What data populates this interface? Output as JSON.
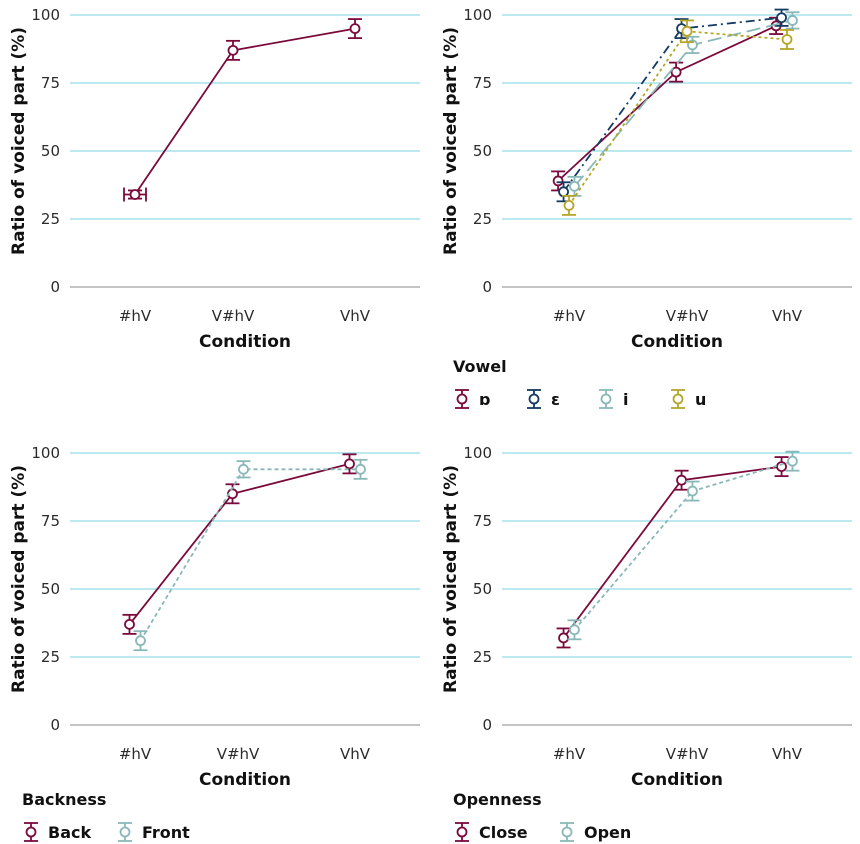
{
  "colors": {
    "grid": "#7ad3e0",
    "axis": "#888888",
    "maroon": "#7b0a3c",
    "navy": "#123a63",
    "lightblue": "#8ab8b8",
    "olive": "#b5a628"
  },
  "chart_data": [
    {
      "type": "line",
      "panel": "top-left",
      "xlabel": "Condition",
      "ylabel": "Ratio of voiced part (%)",
      "ylim": [
        0,
        100
      ],
      "yticks": [
        0,
        25,
        50,
        75,
        100
      ],
      "categories": [
        "#hV",
        "V#hV",
        "VhV"
      ],
      "grid": true,
      "legend": null,
      "series": [
        {
          "name": "",
          "color": "#7b0a3c",
          "dash": "solid",
          "values": [
            34,
            87,
            95
          ],
          "err": [
            1.5,
            3.5,
            3.5
          ],
          "xerr": [
            0.1,
            0,
            0
          ]
        }
      ]
    },
    {
      "type": "line",
      "panel": "top-right",
      "xlabel": "Condition",
      "ylabel": "Ratio of voiced part (%)",
      "ylim": [
        0,
        100
      ],
      "yticks": [
        0,
        25,
        50,
        75,
        100
      ],
      "categories": [
        "#hV",
        "V#hV",
        "VhV"
      ],
      "grid": true,
      "legend": {
        "title": "Vowel",
        "position": "bottom-left"
      },
      "series": [
        {
          "name": "ɒ",
          "color": "#7b0a3c",
          "dash": "solid",
          "values": [
            39,
            79,
            96
          ],
          "err": [
            3.5,
            3.5,
            3
          ],
          "offset": -0.1
        },
        {
          "name": "ɛ",
          "color": "#123a63",
          "dash": "dashdot",
          "values": [
            35,
            95,
            99
          ],
          "err": [
            3.5,
            3.5,
            3
          ],
          "offset": -0.05
        },
        {
          "name": "i",
          "color": "#8ab8b8",
          "dash": "longdash",
          "values": [
            37,
            89,
            98
          ],
          "err": [
            3.5,
            3,
            3
          ],
          "offset": 0.05
        },
        {
          "name": "u",
          "color": "#b5a628",
          "dash": "dotted",
          "values": [
            30,
            94,
            91
          ],
          "err": [
            3.5,
            4,
            3.5
          ],
          "offset": 0
        }
      ]
    },
    {
      "type": "line",
      "panel": "bottom-left",
      "xlabel": "Condition",
      "ylabel": "Ratio of voiced part (%)",
      "ylim": [
        0,
        100
      ],
      "yticks": [
        0,
        25,
        50,
        75,
        100
      ],
      "categories": [
        "#hV",
        "V#hV",
        "VhV"
      ],
      "grid": true,
      "legend": {
        "title": "Backness",
        "position": "bottom-left"
      },
      "series": [
        {
          "name": "Back",
          "color": "#7b0a3c",
          "dash": "solid",
          "values": [
            37,
            85,
            96
          ],
          "err": [
            3.5,
            3.5,
            3.5
          ],
          "offset": -0.05
        },
        {
          "name": "Front",
          "color": "#8ab8b8",
          "dash": "dashed",
          "values": [
            31,
            94,
            94
          ],
          "err": [
            3.5,
            3,
            3.5
          ],
          "offset": 0.05
        }
      ]
    },
    {
      "type": "line",
      "panel": "bottom-right",
      "xlabel": "Condition",
      "ylabel": "Ratio of voiced part (%)",
      "ylim": [
        0,
        100
      ],
      "yticks": [
        0,
        25,
        50,
        75,
        100
      ],
      "categories": [
        "#hV",
        "V#hV",
        "VhV"
      ],
      "grid": true,
      "legend": {
        "title": "Openness",
        "position": "bottom-left"
      },
      "series": [
        {
          "name": "Close",
          "color": "#7b0a3c",
          "dash": "solid",
          "values": [
            32,
            90,
            95
          ],
          "err": [
            3.5,
            3.5,
            3.5
          ],
          "offset": -0.05
        },
        {
          "name": "Open",
          "color": "#8ab8b8",
          "dash": "dashed",
          "values": [
            35,
            86,
            97
          ],
          "err": [
            3.5,
            3.5,
            3.5
          ],
          "offset": 0.05
        }
      ]
    }
  ]
}
